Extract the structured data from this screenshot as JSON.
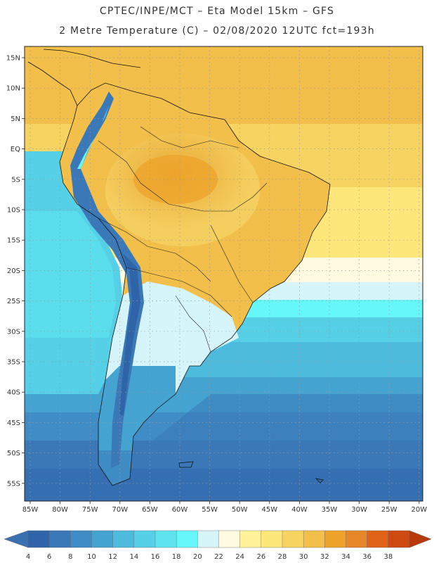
{
  "header": {
    "title_line1": "CPTEC/INPE/MCT –  Eta Model 15km – GFS",
    "title_line2": "2 Metre Temperature (C) – 02/08/2020 12UTC fct=193h"
  },
  "map": {
    "region": "South America",
    "latitude_labels": [
      "15N",
      "10N",
      "5N",
      "EQ",
      "5S",
      "10S",
      "15S",
      "20S",
      "25S",
      "30S",
      "35S",
      "40S",
      "45S",
      "50S",
      "55S"
    ],
    "longitude_labels": [
      "85W",
      "80W",
      "75W",
      "70W",
      "65W",
      "60W",
      "55W",
      "50W",
      "45W",
      "40W",
      "35W",
      "30W",
      "25W",
      "20W"
    ],
    "grid": "dotted"
  },
  "colorbar": {
    "labels": [
      "4",
      "6",
      "8",
      "10",
      "12",
      "14",
      "16",
      "18",
      "20",
      "22",
      "24",
      "26",
      "28",
      "30",
      "32",
      "34",
      "36",
      "38"
    ],
    "low_arrow_color": "#3a6fb0",
    "high_arrow_color": "#b83a0c",
    "colors": [
      "#2f65a8",
      "#3a78b8",
      "#3f8cc6",
      "#45a3d2",
      "#4dbbdc",
      "#55d0e6",
      "#5de4ef",
      "#66f7fb",
      "#d6f5fb",
      "#fffae0",
      "#fef39a",
      "#fde67a",
      "#f7d462",
      "#f2c04a",
      "#eda32a",
      "#e8862a",
      "#e06318",
      "#cf4a10"
    ]
  }
}
